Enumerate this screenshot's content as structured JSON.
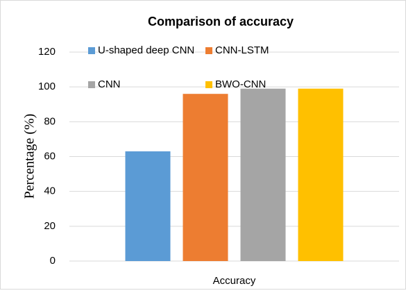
{
  "chart_data": {
    "type": "bar",
    "title": "Comparison of accuracy",
    "categories": [
      "Accuracy"
    ],
    "series": [
      {
        "name": "U-shaped deep CNN",
        "color": "#5b9bd5",
        "values": [
          63
        ]
      },
      {
        "name": "CNN-LSTM",
        "color": "#ed7d31",
        "values": [
          96
        ]
      },
      {
        "name": "CNN",
        "color": "#a5a5a5",
        "values": [
          99
        ]
      },
      {
        "name": "BWO-CNN",
        "color": "#ffc000",
        "values": [
          99
        ]
      }
    ],
    "y_label": "Percentage (%)",
    "ylim": [
      0,
      120
    ],
    "yticks": [
      0,
      20,
      40,
      60,
      80,
      100,
      120
    ],
    "grid": true,
    "legend": "top"
  }
}
